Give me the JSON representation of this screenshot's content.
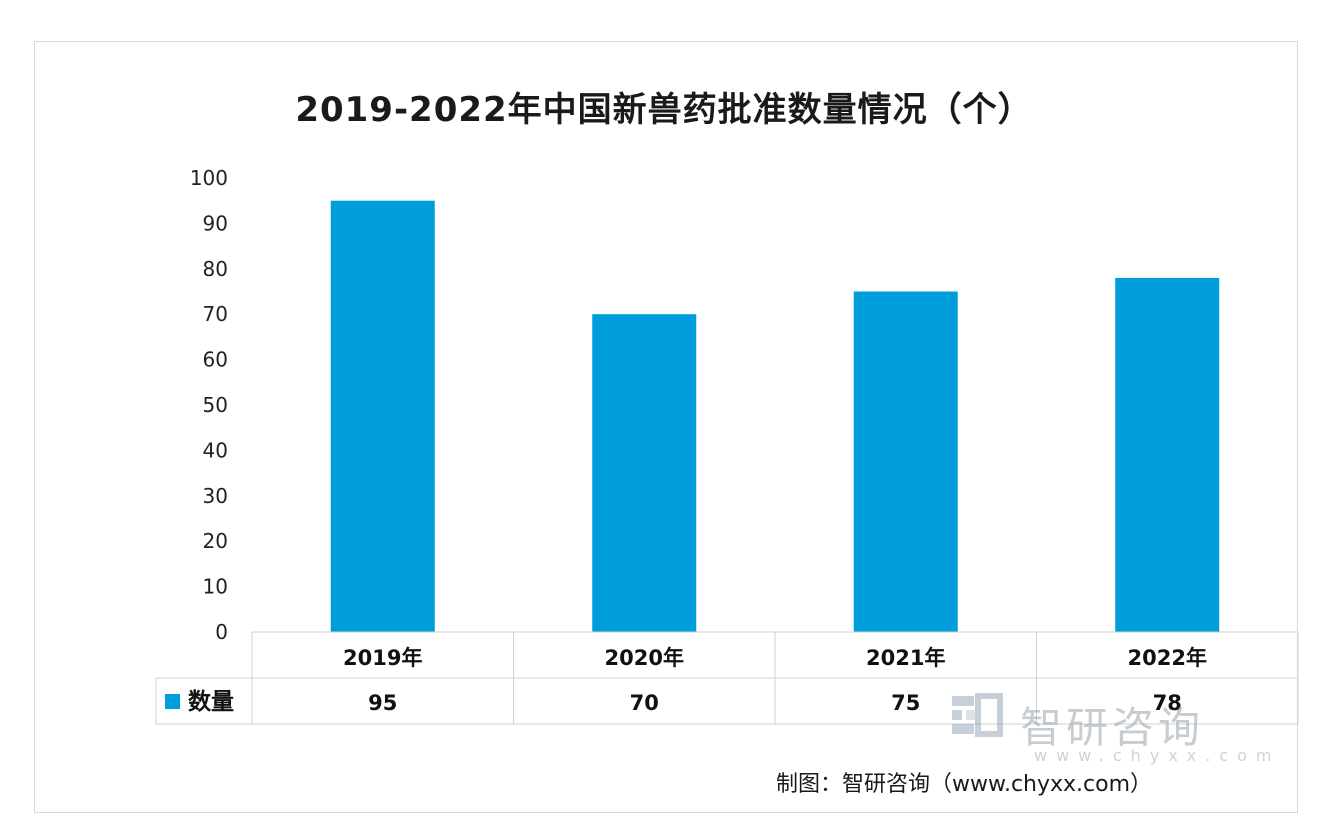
{
  "chart_data": {
    "type": "bar",
    "title": "2019-2022年中国新兽药批准数量情况（个）",
    "categories": [
      "2019年",
      "2020年",
      "2021年",
      "2022年"
    ],
    "series": [
      {
        "name": "数量",
        "values": [
          95,
          70,
          75,
          78
        ],
        "color": "#009ddd"
      }
    ],
    "ylim": [
      0,
      100
    ],
    "yticks": [
      0,
      10,
      20,
      30,
      40,
      50,
      60,
      70,
      80,
      90,
      100
    ],
    "grid": false,
    "data_table": true,
    "legend": "data-table-left"
  },
  "watermark": {
    "brand": "智研咨询",
    "url": "www.chyxx.com"
  },
  "source": "制图：智研咨询（www.chyxx.com）"
}
